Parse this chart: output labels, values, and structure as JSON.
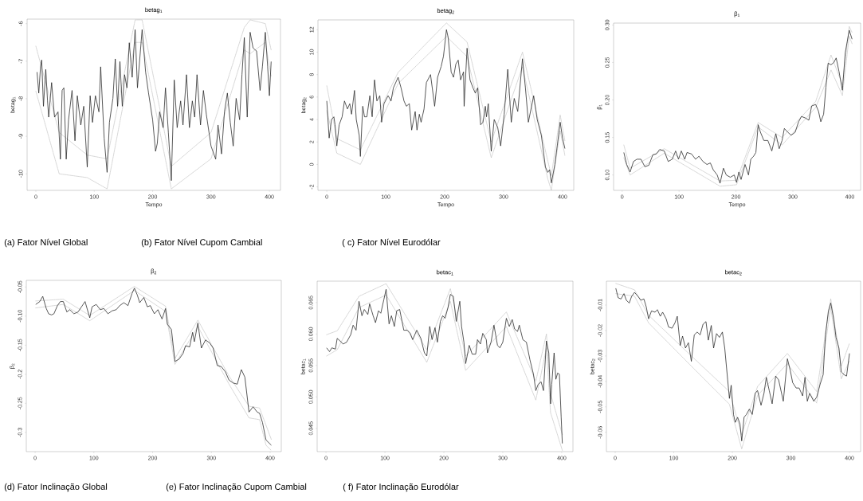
{
  "chart_data": [
    {
      "type": "line",
      "title": "betag$_{1}$",
      "xlabel": "Tempo",
      "ylabel": "betag$_{1}$",
      "xlim": [
        -15,
        419
      ],
      "ylim": [
        -10.44,
        -5.88
      ],
      "xticks": [
        0,
        100,
        200,
        300,
        400
      ],
      "yticks": [
        -10,
        -9,
        -8,
        -7,
        -6
      ],
      "annotations": [
        "(a) Fator Nível Global"
      ],
      "series": [
        {
          "color": "#222222",
          "x": [
            2,
            5,
            8,
            10,
            13,
            17,
            20,
            22,
            27,
            32,
            38,
            42,
            45,
            48,
            52,
            56,
            62,
            67,
            71,
            77,
            82,
            88,
            93,
            97,
            102,
            108,
            111,
            117,
            122,
            126,
            132,
            136,
            140,
            144,
            148,
            152,
            156,
            160,
            165,
            170,
            174,
            182,
            188,
            193,
            200,
            205,
            208,
            212,
            218,
            222,
            227,
            232,
            237,
            242,
            248,
            252,
            258,
            263,
            268,
            272,
            276,
            282,
            287,
            292,
            300,
            308,
            312,
            318,
            323,
            328,
            333,
            338,
            343,
            349,
            353,
            357,
            362,
            367,
            372,
            378,
            384,
            388,
            393,
            397,
            400,
            403
          ],
          "values": [
            -7.29,
            -7.85,
            -7.15,
            -6.97,
            -8.2,
            -7.22,
            -8.06,
            -8.49,
            -7.57,
            -8.49,
            -8.35,
            -9.61,
            -7.78,
            -7.71,
            -9.61,
            -8.56,
            -7.78,
            -9.12,
            -7.92,
            -8.7,
            -8.2,
            -9.82,
            -7.92,
            -8.63,
            -7.92,
            -8.35,
            -7.15,
            -9.05,
            -9.96,
            -8.63,
            -7.99,
            -6.94,
            -8.2,
            -7.01,
            -8.2,
            -7.36,
            -7.71,
            -6.51,
            -7.43,
            -6.16,
            -7.71,
            -6.16,
            -7.29,
            -7.85,
            -8.56,
            -9.4,
            -9.19,
            -8.35,
            -8.77,
            -7.71,
            -8.91,
            -10.18,
            -7.5,
            -8.77,
            -8.06,
            -8.7,
            -7.36,
            -8.77,
            -8.06,
            -8.49,
            -7.36,
            -8.7,
            -7.78,
            -8.42,
            -9.26,
            -9.61,
            -8.7,
            -9.47,
            -8.35,
            -7.85,
            -8.63,
            -9.26,
            -7.99,
            -8.56,
            -7.36,
            -6.37,
            -8.49,
            -6.23,
            -6.65,
            -6.73,
            -7.78,
            -7.15,
            -6.23,
            -7.15,
            -7.92,
            -7.01
          ]
        },
        {
          "color": "#bbbbbb",
          "line_style": "dotted",
          "x": [
            0,
            40,
            88,
            122,
            170,
            182,
            232,
            300,
            357,
            367,
            393,
            403
          ],
          "values": [
            -6.6,
            -8.9,
            -9.5,
            -9.6,
            -5.9,
            -5.9,
            -9.8,
            -8.9,
            -6.1,
            -5.9,
            -6.0,
            -6.7
          ]
        },
        {
          "color": "#bbbbbb",
          "line_style": "dotted",
          "x": [
            0,
            40,
            88,
            122,
            170,
            182,
            232,
            300,
            357,
            367,
            393,
            403
          ],
          "values": [
            -7.8,
            -10.0,
            -10.1,
            -10.4,
            -6.5,
            -6.5,
            -10.4,
            -9.6,
            -6.7,
            -6.8,
            -6.5,
            -7.4
          ]
        }
      ]
    },
    {
      "type": "line",
      "title": "betag$_{2}$",
      "xlabel": "Tempo",
      "ylabel": "betag$_{2}$",
      "xlim": [
        -15,
        419
      ],
      "ylim": [
        -2.31,
        12.87
      ],
      "xticks": [
        0,
        100,
        200,
        300,
        400
      ],
      "yticks": [
        -2,
        0,
        2,
        4,
        6,
        8,
        10,
        12
      ],
      "annotations": [
        "(b) Fator Nível Cupom Cambial"
      ],
      "series": [
        {
          "color": "#222222",
          "x": [
            0,
            4,
            8,
            12,
            14,
            17,
            21,
            26,
            30,
            35,
            39,
            42,
            47,
            50,
            55,
            57,
            61,
            64,
            68,
            73,
            77,
            81,
            85,
            90,
            93,
            97,
            104,
            109,
            113,
            121,
            126,
            131,
            135,
            140,
            144,
            150,
            153,
            157,
            160,
            165,
            169,
            176,
            183,
            188,
            194,
            198,
            203,
            206,
            211,
            215,
            219,
            223,
            227,
            232,
            233,
            238,
            243,
            248,
            252,
            256,
            261,
            265,
            269,
            271,
            274,
            279,
            284,
            290,
            295,
            301,
            307,
            313,
            318,
            324,
            332,
            337,
            342,
            351,
            357,
            364,
            371,
            375,
            378,
            381,
            387,
            396,
            400,
            404
          ],
          "values": [
            5.65,
            2.35,
            4.0,
            4.24,
            3.53,
            1.65,
            3.53,
            4.24,
            5.65,
            4.94,
            5.41,
            4.47,
            6.59,
            4.0,
            2.59,
            0.71,
            5.18,
            4.24,
            4.24,
            6.12,
            4.24,
            7.53,
            5.65,
            6.12,
            3.76,
            5.41,
            6.12,
            5.65,
            6.82,
            7.76,
            6.82,
            5.65,
            5.18,
            5.41,
            3.06,
            4.71,
            3.06,
            4.47,
            3.76,
            4.94,
            7.29,
            8.0,
            5.18,
            7.76,
            8.71,
            9.65,
            12.0,
            11.29,
            8.24,
            7.76,
            8.94,
            9.29,
            7.53,
            8.24,
            5.18,
            10.35,
            7.53,
            6.82,
            6.35,
            6.82,
            3.53,
            3.76,
            5.18,
            4.24,
            5.41,
            1.18,
            4.0,
            3.29,
            1.65,
            4.47,
            8.47,
            3.76,
            5.88,
            4.71,
            9.41,
            6.82,
            3.76,
            6.12,
            4.0,
            2.59,
            -0.24,
            -0.71,
            -0.47,
            -1.65,
            0.0,
            3.76,
            2.35,
            1.41
          ]
        },
        {
          "color": "#bbbbbb",
          "line_style": "dotted",
          "x": [
            0,
            17,
            57,
            121,
            203,
            238,
            279,
            332,
            375,
            381,
            396,
            404
          ],
          "values": [
            7.0,
            2.3,
            1.3,
            8.2,
            12.6,
            10.9,
            2.0,
            10.0,
            0.3,
            -1.0,
            4.4,
            2.1
          ]
        },
        {
          "color": "#bbbbbb",
          "line_style": "dotted",
          "x": [
            0,
            17,
            57,
            121,
            203,
            238,
            279,
            332,
            375,
            381,
            396,
            404
          ],
          "values": [
            4.8,
            1.0,
            0.0,
            7.2,
            11.4,
            9.6,
            0.6,
            8.7,
            -1.3,
            -2.3,
            3.0,
            0.8
          ]
        }
      ]
    },
    {
      "type": "line",
      "title": "β$_{1}$",
      "xlabel": "Tempo",
      "ylabel": "β$_{1}$",
      "xlim": [
        -15,
        419
      ],
      "ylim": [
        0.0795,
        0.3025
      ],
      "xticks": [
        0,
        100,
        200,
        300,
        400
      ],
      "yticks": [
        {
          "value": 0.1,
          "label": "0.10"
        },
        {
          "value": 0.15,
          "label": "0.15"
        },
        {
          "value": 0.2,
          "label": "0.20"
        },
        {
          "value": 0.25,
          "label": "0.25"
        },
        {
          "value": 0.3,
          "label": "0.30"
        }
      ],
      "annotations": [
        "( c) Fator Nível Eurodólar"
      ],
      "series": [
        {
          "color": "#222222",
          "x": [
            3,
            8,
            14,
            20,
            26,
            33,
            40,
            47,
            54,
            60,
            66,
            74,
            81,
            88,
            94,
            99,
            104,
            110,
            114,
            122,
            129,
            135,
            142,
            149,
            155,
            160,
            167,
            172,
            178,
            183,
            190,
            197,
            201,
            205,
            209,
            216,
            222,
            226,
            231,
            235,
            239,
            243,
            249,
            256,
            263,
            270,
            276,
            281,
            285,
            291,
            297,
            304,
            310,
            315,
            322,
            328,
            333,
            340,
            345,
            349,
            354,
            358,
            362,
            367,
            372,
            376,
            381,
            387,
            392,
            399,
            404
          ],
          "values": [
            0.13,
            0.114,
            0.104,
            0.118,
            0.121,
            0.121,
            0.111,
            0.113,
            0.127,
            0.128,
            0.134,
            0.132,
            0.118,
            0.121,
            0.132,
            0.121,
            0.132,
            0.121,
            0.13,
            0.128,
            0.121,
            0.125,
            0.118,
            0.114,
            0.116,
            0.107,
            0.1,
            0.089,
            0.109,
            0.1,
            0.097,
            0.1,
            0.09,
            0.104,
            0.094,
            0.114,
            0.1,
            0.121,
            0.125,
            0.13,
            0.167,
            0.157,
            0.146,
            0.146,
            0.132,
            0.155,
            0.135,
            0.146,
            0.162,
            0.157,
            0.153,
            0.157,
            0.171,
            0.178,
            0.176,
            0.173,
            0.192,
            0.194,
            0.185,
            0.171,
            0.181,
            0.217,
            0.249,
            0.247,
            0.25,
            0.256,
            0.238,
            0.213,
            0.263,
            0.293,
            0.281
          ]
        },
        {
          "color": "#bbbbbb",
          "line_style": "dotted",
          "x": [
            3,
            14,
            74,
            172,
            201,
            239,
            281,
            340,
            367,
            387,
            399,
            404
          ],
          "values": [
            0.14,
            0.109,
            0.135,
            0.092,
            0.093,
            0.17,
            0.15,
            0.198,
            0.26,
            0.22,
            0.298,
            0.29
          ]
        },
        {
          "color": "#bbbbbb",
          "line_style": "dotted",
          "x": [
            3,
            14,
            74,
            172,
            201,
            239,
            281,
            340,
            367,
            387,
            399,
            404
          ],
          "values": [
            0.123,
            0.1,
            0.129,
            0.085,
            0.087,
            0.164,
            0.14,
            0.19,
            0.24,
            0.206,
            0.285,
            0.275
          ]
        }
      ]
    },
    {
      "type": "line",
      "title": "β$_{2}$",
      "ylabel": "β$_{2}$",
      "xlim": [
        -15,
        419
      ],
      "ylim": [
        -0.333,
        -0.0386
      ],
      "xticks": [
        0,
        100,
        200,
        300,
        400
      ],
      "yticks": [
        -0.3,
        -0.25,
        -0.2,
        -0.15,
        {
          "value": -0.1,
          "label": "-0.10"
        },
        -0.05
      ],
      "annotations": [
        "(d) Fator Inclinação Global"
      ],
      "series": [
        {
          "color": "#222222",
          "x": [
            1,
            8,
            13,
            19,
            23,
            28,
            32,
            38,
            43,
            48,
            54,
            59,
            66,
            73,
            79,
            85,
            93,
            97,
            104,
            111,
            117,
            124,
            131,
            138,
            144,
            151,
            158,
            165,
            169,
            174,
            178,
            185,
            191,
            196,
            203,
            209,
            216,
            222,
            225,
            232,
            238,
            245,
            252,
            256,
            263,
            268,
            271,
            277,
            283,
            290,
            297,
            303,
            310,
            317,
            324,
            330,
            337,
            344,
            351,
            357,
            364,
            371,
            378,
            382,
            387,
            393,
            402
          ],
          "values": [
            -0.08,
            -0.075,
            -0.066,
            -0.087,
            -0.096,
            -0.098,
            -0.096,
            -0.082,
            -0.075,
            -0.075,
            -0.093,
            -0.089,
            -0.096,
            -0.093,
            -0.084,
            -0.075,
            -0.103,
            -0.084,
            -0.08,
            -0.089,
            -0.087,
            -0.096,
            -0.091,
            -0.089,
            -0.082,
            -0.077,
            -0.082,
            -0.061,
            -0.052,
            -0.064,
            -0.077,
            -0.068,
            -0.084,
            -0.082,
            -0.096,
            -0.089,
            -0.105,
            -0.087,
            -0.114,
            -0.123,
            -0.178,
            -0.174,
            -0.164,
            -0.151,
            -0.153,
            -0.128,
            -0.144,
            -0.112,
            -0.155,
            -0.141,
            -0.146,
            -0.155,
            -0.185,
            -0.187,
            -0.196,
            -0.21,
            -0.215,
            -0.217,
            -0.192,
            -0.205,
            -0.265,
            -0.256,
            -0.265,
            -0.267,
            -0.283,
            -0.313,
            -0.322
          ]
        },
        {
          "color": "#bbbbbb",
          "line_style": "dotted",
          "x": [
            1,
            48,
            93,
            169,
            222,
            238,
            277,
            330,
            364,
            382,
            402
          ],
          "values": [
            -0.074,
            -0.071,
            -0.099,
            -0.049,
            -0.083,
            -0.173,
            -0.107,
            -0.203,
            -0.255,
            -0.258,
            -0.312
          ]
        },
        {
          "color": "#bbbbbb",
          "line_style": "dotted",
          "x": [
            1,
            48,
            93,
            169,
            222,
            238,
            277,
            330,
            364,
            382,
            393,
            402
          ],
          "values": [
            -0.086,
            -0.08,
            -0.108,
            -0.056,
            -0.092,
            -0.183,
            -0.118,
            -0.217,
            -0.275,
            -0.278,
            -0.322,
            -0.331
          ]
        }
      ]
    },
    {
      "type": "line",
      "title": "betac$_{1}$",
      "ylabel": "betac$_{1}$",
      "xlim": [
        -15,
        419
      ],
      "ylim": [
        0.0413,
        0.0684
      ],
      "xticks": [
        0,
        100,
        200,
        300,
        400
      ],
      "yticks": [
        0.045,
        {
          "value": 0.05,
          "label": "0.050"
        },
        0.055,
        {
          "value": 0.06,
          "label": "0.060"
        },
        0.065
      ],
      "annotations": [
        "(e) Fator Inclinação Cupom Cambial"
      ],
      "series": [
        {
          "color": "#222222",
          "x": [
            1,
            6,
            10,
            16,
            19,
            24,
            29,
            35,
            42,
            46,
            51,
            56,
            61,
            65,
            71,
            74,
            80,
            84,
            89,
            93,
            98,
            102,
            107,
            111,
            116,
            120,
            125,
            132,
            138,
            143,
            147,
            154,
            161,
            167,
            171,
            176,
            180,
            185,
            189,
            194,
            198,
            202,
            207,
            211,
            216,
            221,
            227,
            230,
            234,
            237,
            243,
            248,
            254,
            257,
            262,
            266,
            272,
            274,
            280,
            285,
            291,
            295,
            300,
            306,
            311,
            316,
            320,
            325,
            328,
            334,
            340,
            346,
            352,
            356,
            360,
            365,
            369,
            374,
            378,
            381,
            383,
            387,
            390,
            393,
            396,
            399,
            401
          ],
          "values": [
            0.0578,
            0.0572,
            0.0578,
            0.0576,
            0.0593,
            0.0589,
            0.0584,
            0.0587,
            0.0599,
            0.0614,
            0.0606,
            0.0652,
            0.0629,
            0.0639,
            0.0631,
            0.0648,
            0.0629,
            0.0618,
            0.0637,
            0.0633,
            0.0654,
            0.0671,
            0.0616,
            0.0629,
            0.0612,
            0.0637,
            0.0639,
            0.0606,
            0.0606,
            0.0601,
            0.0591,
            0.0606,
            0.0593,
            0.057,
            0.0565,
            0.0612,
            0.0591,
            0.061,
            0.0587,
            0.062,
            0.0629,
            0.0625,
            0.0642,
            0.0663,
            0.066,
            0.062,
            0.0652,
            0.0612,
            0.0587,
            0.0553,
            0.0582,
            0.0568,
            0.0568,
            0.0591,
            0.0584,
            0.0601,
            0.0591,
            0.057,
            0.0587,
            0.0614,
            0.0582,
            0.0578,
            0.0587,
            0.0625,
            0.0612,
            0.0623,
            0.0608,
            0.0604,
            0.0614,
            0.0591,
            0.0587,
            0.0559,
            0.0536,
            0.051,
            0.052,
            0.0524,
            0.051,
            0.0589,
            0.057,
            0.0489,
            0.052,
            0.057,
            0.0528,
            0.0538,
            0.0536,
            0.0468,
            0.0426
          ]
        },
        {
          "color": "#bbbbbb",
          "line_style": "dotted",
          "x": [
            1,
            19,
            56,
            102,
            171,
            211,
            237,
            306,
            356,
            374,
            381,
            401
          ],
          "values": [
            0.0599,
            0.0605,
            0.066,
            0.068,
            0.0575,
            0.0672,
            0.0565,
            0.0635,
            0.0525,
            0.06,
            0.0505,
            0.044
          ]
        },
        {
          "color": "#bbbbbb",
          "line_style": "dotted",
          "x": [
            1,
            19,
            56,
            102,
            171,
            211,
            237,
            306,
            356,
            374,
            381,
            401
          ],
          "values": [
            0.0565,
            0.0575,
            0.0642,
            0.0662,
            0.0555,
            0.0652,
            0.0542,
            0.0612,
            0.0495,
            0.0578,
            0.0475,
            0.0415
          ]
        }
      ]
    },
    {
      "type": "line",
      "title": "betac$_{2}$",
      "ylabel": "betac$_{2}$",
      "xlim": [
        -15,
        419
      ],
      "ylim": [
        -0.0676,
        -0.0006
      ],
      "xticks": [
        0,
        100,
        200,
        300,
        400
      ],
      "yticks": [
        -0.06,
        -0.05,
        -0.04,
        -0.03,
        -0.02,
        -0.01
      ],
      "annotations": [
        "( f)  Fator Inclinação Eurodólar"
      ],
      "series": [
        {
          "color": "#222222",
          "x": [
            1,
            5,
            10,
            15,
            19,
            24,
            28,
            33,
            39,
            44,
            49,
            53,
            57,
            62,
            68,
            72,
            77,
            81,
            87,
            91,
            97,
            102,
            106,
            111,
            115,
            120,
            125,
            130,
            135,
            140,
            145,
            150,
            155,
            159,
            164,
            168,
            173,
            178,
            183,
            187,
            192,
            195,
            198,
            202,
            205,
            209,
            213,
            216,
            220,
            224,
            229,
            234,
            239,
            243,
            249,
            254,
            258,
            263,
            268,
            274,
            279,
            287,
            294,
            299,
            303,
            309,
            314,
            320,
            324,
            328,
            332,
            339,
            344,
            350,
            355,
            359,
            364,
            368,
            373,
            377,
            382,
            386,
            391,
            395,
            400
          ],
          "values": [
            -0.0034,
            -0.0071,
            -0.0076,
            -0.0055,
            -0.0081,
            -0.0092,
            -0.0066,
            -0.005,
            -0.0066,
            -0.0081,
            -0.0076,
            -0.0107,
            -0.0154,
            -0.0123,
            -0.0128,
            -0.0118,
            -0.0144,
            -0.0128,
            -0.0154,
            -0.0186,
            -0.0191,
            -0.017,
            -0.0144,
            -0.0259,
            -0.0222,
            -0.0269,
            -0.0248,
            -0.0321,
            -0.0217,
            -0.0206,
            -0.0217,
            -0.0175,
            -0.0165,
            -0.0238,
            -0.018,
            -0.0269,
            -0.0212,
            -0.0227,
            -0.0206,
            -0.0269,
            -0.0394,
            -0.0467,
            -0.0415,
            -0.053,
            -0.0561,
            -0.0541,
            -0.0567,
            -0.0634,
            -0.0541,
            -0.053,
            -0.0509,
            -0.053,
            -0.0447,
            -0.0436,
            -0.0494,
            -0.0447,
            -0.0384,
            -0.0436,
            -0.0488,
            -0.0379,
            -0.0394,
            -0.0478,
            -0.0311,
            -0.0358,
            -0.0405,
            -0.0426,
            -0.0426,
            -0.0457,
            -0.0384,
            -0.0478,
            -0.0447,
            -0.0478,
            -0.0462,
            -0.041,
            -0.0374,
            -0.0217,
            -0.0123,
            -0.0092,
            -0.0154,
            -0.0227,
            -0.0269,
            -0.0363,
            -0.0374,
            -0.0379,
            -0.029
          ]
        },
        {
          "color": "#bbbbbb",
          "line_style": "dotted",
          "x": [
            1,
            33,
            57,
            130,
            195,
            216,
            243,
            294,
            344,
            368,
            386,
            400
          ],
          "values": [
            -0.0015,
            -0.004,
            -0.014,
            -0.03,
            -0.044,
            -0.061,
            -0.042,
            -0.029,
            -0.044,
            -0.0075,
            -0.034,
            -0.025
          ]
        },
        {
          "color": "#bbbbbb",
          "line_style": "dotted",
          "x": [
            1,
            33,
            57,
            130,
            195,
            216,
            243,
            294,
            344,
            368,
            386,
            400
          ],
          "values": [
            -0.0055,
            -0.0065,
            -0.017,
            -0.034,
            -0.049,
            -0.0665,
            -0.0455,
            -0.033,
            -0.0485,
            -0.011,
            -0.039,
            -0.032
          ]
        }
      ]
    }
  ]
}
